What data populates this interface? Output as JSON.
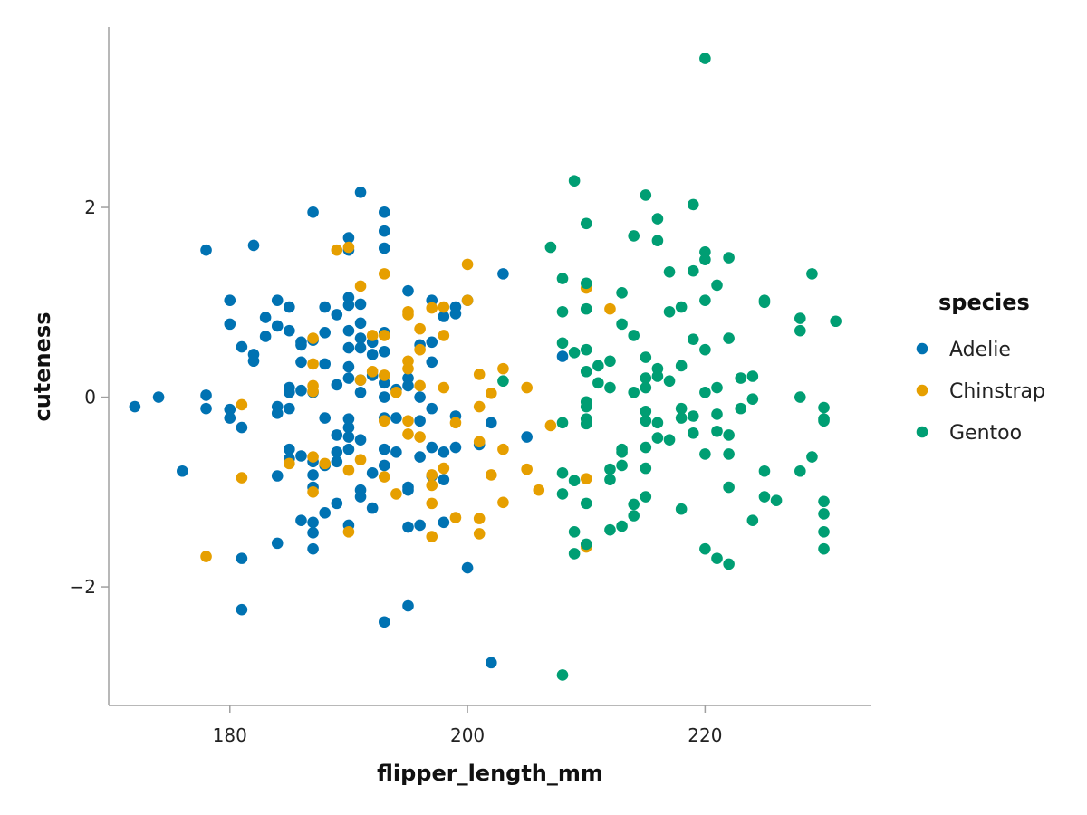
{
  "chart_data": {
    "type": "scatter",
    "xlabel": "flipper_length_mm",
    "ylabel": "cuteness",
    "xlim": [
      169.8,
      234.0
    ],
    "ylim": [
      -3.25,
      3.9
    ],
    "xticks": [
      180,
      200,
      220
    ],
    "yticks": [
      -2,
      0,
      2
    ],
    "xtick_labels": [
      "180",
      "200",
      "220"
    ],
    "ytick_labels": [
      "−2",
      "0",
      "2"
    ],
    "grid": false,
    "legend": {
      "title": "species",
      "placement": "right"
    },
    "series": [
      {
        "name": "Adelie",
        "color": "#0072B2",
        "points": [
          [
            172,
            -0.1
          ],
          [
            174,
            0.0
          ],
          [
            176,
            -0.78
          ],
          [
            178,
            1.55
          ],
          [
            178,
            0.02
          ],
          [
            178,
            -0.12
          ],
          [
            180,
            1.02
          ],
          [
            180,
            0.77
          ],
          [
            180,
            -0.13
          ],
          [
            180,
            -0.22
          ],
          [
            181,
            0.53
          ],
          [
            181,
            -0.32
          ],
          [
            181,
            -1.7
          ],
          [
            181,
            -2.24
          ],
          [
            182,
            1.6
          ],
          [
            182,
            0.45
          ],
          [
            182,
            0.38
          ],
          [
            183,
            0.84
          ],
          [
            183,
            0.64
          ],
          [
            184,
            1.02
          ],
          [
            184,
            0.75
          ],
          [
            184,
            -0.1
          ],
          [
            184,
            -0.17
          ],
          [
            184,
            -0.83
          ],
          [
            184,
            -1.54
          ],
          [
            185,
            0.95
          ],
          [
            185,
            0.7
          ],
          [
            185,
            0.1
          ],
          [
            185,
            0.05
          ],
          [
            185,
            -0.12
          ],
          [
            185,
            -0.55
          ],
          [
            185,
            -0.65
          ],
          [
            186,
            0.58
          ],
          [
            186,
            0.55
          ],
          [
            186,
            0.37
          ],
          [
            186,
            0.07
          ],
          [
            186,
            -0.62
          ],
          [
            186,
            -1.3
          ],
          [
            187,
            1.95
          ],
          [
            187,
            0.6
          ],
          [
            187,
            0.05
          ],
          [
            187,
            -0.68
          ],
          [
            187,
            -0.82
          ],
          [
            187,
            -0.95
          ],
          [
            187,
            -1.32
          ],
          [
            187,
            -1.43
          ],
          [
            187,
            -1.6
          ],
          [
            188,
            0.95
          ],
          [
            188,
            0.35
          ],
          [
            188,
            0.68
          ],
          [
            188,
            -0.22
          ],
          [
            188,
            -0.72
          ],
          [
            188,
            -1.22
          ],
          [
            189,
            0.87
          ],
          [
            189,
            0.13
          ],
          [
            189,
            -0.4
          ],
          [
            189,
            -0.58
          ],
          [
            189,
            -0.68
          ],
          [
            189,
            -1.12
          ],
          [
            190,
            1.68
          ],
          [
            190,
            1.55
          ],
          [
            190,
            1.05
          ],
          [
            190,
            0.97
          ],
          [
            190,
            0.7
          ],
          [
            190,
            0.52
          ],
          [
            190,
            0.32
          ],
          [
            190,
            0.2
          ],
          [
            190,
            -0.23
          ],
          [
            190,
            -0.32
          ],
          [
            190,
            -0.42
          ],
          [
            190,
            -0.55
          ],
          [
            190,
            -1.35
          ],
          [
            191,
            2.16
          ],
          [
            191,
            0.98
          ],
          [
            191,
            0.78
          ],
          [
            191,
            0.62
          ],
          [
            191,
            0.52
          ],
          [
            191,
            0.18
          ],
          [
            191,
            0.05
          ],
          [
            191,
            -0.45
          ],
          [
            191,
            -0.98
          ],
          [
            191,
            -1.05
          ],
          [
            192,
            0.58
          ],
          [
            192,
            0.45
          ],
          [
            192,
            0.23
          ],
          [
            192,
            -0.8
          ],
          [
            192,
            -1.17
          ],
          [
            193,
            1.95
          ],
          [
            193,
            1.75
          ],
          [
            193,
            1.57
          ],
          [
            193,
            0.68
          ],
          [
            193,
            0.48
          ],
          [
            193,
            0.15
          ],
          [
            193,
            0.0
          ],
          [
            193,
            -0.22
          ],
          [
            193,
            -0.55
          ],
          [
            193,
            -0.72
          ],
          [
            193,
            -2.37
          ],
          [
            194,
            0.08
          ],
          [
            194,
            -0.22
          ],
          [
            194,
            -0.58
          ],
          [
            195,
            1.12
          ],
          [
            195,
            0.2
          ],
          [
            195,
            0.12
          ],
          [
            195,
            -0.95
          ],
          [
            195,
            -0.98
          ],
          [
            195,
            -1.37
          ],
          [
            195,
            -2.2
          ],
          [
            196,
            0.55
          ],
          [
            196,
            0.0
          ],
          [
            196,
            -0.25
          ],
          [
            196,
            -0.63
          ],
          [
            196,
            -1.35
          ],
          [
            197,
            1.02
          ],
          [
            197,
            0.58
          ],
          [
            197,
            0.37
          ],
          [
            197,
            -0.12
          ],
          [
            197,
            -0.53
          ],
          [
            197,
            -0.83
          ],
          [
            198,
            0.85
          ],
          [
            198,
            -0.58
          ],
          [
            198,
            -0.87
          ],
          [
            198,
            -1.32
          ],
          [
            199,
            0.95
          ],
          [
            199,
            0.88
          ],
          [
            199,
            -0.2
          ],
          [
            199,
            -0.53
          ],
          [
            200,
            1.02
          ],
          [
            200,
            -1.8
          ],
          [
            201,
            -0.5
          ],
          [
            202,
            -0.27
          ],
          [
            202,
            -2.8
          ],
          [
            203,
            1.3
          ],
          [
            205,
            -0.42
          ],
          [
            208,
            0.43
          ]
        ]
      },
      {
        "name": "Chinstrap",
        "color": "#E69F00",
        "points": [
          [
            178,
            -1.68
          ],
          [
            181,
            -0.08
          ],
          [
            181,
            -0.85
          ],
          [
            185,
            -0.7
          ],
          [
            187,
            0.62
          ],
          [
            187,
            0.35
          ],
          [
            187,
            0.12
          ],
          [
            187,
            0.06
          ],
          [
            187,
            -0.63
          ],
          [
            187,
            -1.0
          ],
          [
            188,
            -0.7
          ],
          [
            189,
            1.55
          ],
          [
            190,
            1.58
          ],
          [
            190,
            -0.77
          ],
          [
            190,
            -1.42
          ],
          [
            191,
            1.17
          ],
          [
            191,
            0.18
          ],
          [
            191,
            -0.66
          ],
          [
            192,
            0.65
          ],
          [
            192,
            0.27
          ],
          [
            193,
            1.3
          ],
          [
            193,
            0.65
          ],
          [
            193,
            0.23
          ],
          [
            193,
            -0.25
          ],
          [
            193,
            -0.84
          ],
          [
            194,
            0.05
          ],
          [
            194,
            -1.02
          ],
          [
            195,
            0.9
          ],
          [
            195,
            0.87
          ],
          [
            195,
            0.38
          ],
          [
            195,
            0.3
          ],
          [
            195,
            -0.25
          ],
          [
            195,
            -0.39
          ],
          [
            196,
            0.72
          ],
          [
            196,
            0.5
          ],
          [
            196,
            0.12
          ],
          [
            196,
            -0.42
          ],
          [
            197,
            0.94
          ],
          [
            197,
            -0.82
          ],
          [
            197,
            -0.93
          ],
          [
            197,
            -1.12
          ],
          [
            197,
            -1.47
          ],
          [
            198,
            0.95
          ],
          [
            198,
            0.65
          ],
          [
            198,
            0.1
          ],
          [
            198,
            -0.75
          ],
          [
            199,
            -0.27
          ],
          [
            199,
            -1.27
          ],
          [
            200,
            1.4
          ],
          [
            200,
            1.02
          ],
          [
            201,
            0.24
          ],
          [
            201,
            -0.1
          ],
          [
            201,
            -0.47
          ],
          [
            201,
            -1.28
          ],
          [
            201,
            -1.44
          ],
          [
            202,
            0.04
          ],
          [
            202,
            -0.82
          ],
          [
            203,
            0.3
          ],
          [
            203,
            -0.55
          ],
          [
            203,
            -1.11
          ],
          [
            205,
            0.1
          ],
          [
            205,
            -0.76
          ],
          [
            206,
            -0.98
          ],
          [
            207,
            -0.3
          ],
          [
            210,
            1.15
          ],
          [
            210,
            -0.86
          ],
          [
            210,
            -1.58
          ],
          [
            212,
            0.93
          ]
        ]
      },
      {
        "name": "Gentoo",
        "color": "#009E73",
        "points": [
          [
            203,
            0.17
          ],
          [
            207,
            1.58
          ],
          [
            208,
            1.25
          ],
          [
            208,
            0.9
          ],
          [
            208,
            0.57
          ],
          [
            208,
            -0.27
          ],
          [
            208,
            -0.8
          ],
          [
            208,
            -1.02
          ],
          [
            208,
            -2.93
          ],
          [
            209,
            2.28
          ],
          [
            209,
            0.47
          ],
          [
            209,
            -0.88
          ],
          [
            209,
            -1.42
          ],
          [
            209,
            -1.65
          ],
          [
            210,
            1.83
          ],
          [
            210,
            1.2
          ],
          [
            210,
            0.93
          ],
          [
            210,
            0.5
          ],
          [
            210,
            0.27
          ],
          [
            210,
            -0.05
          ],
          [
            210,
            -0.1
          ],
          [
            210,
            -0.23
          ],
          [
            210,
            -0.28
          ],
          [
            210,
            -1.12
          ],
          [
            210,
            -1.55
          ],
          [
            211,
            0.33
          ],
          [
            211,
            0.15
          ],
          [
            212,
            0.38
          ],
          [
            212,
            0.1
          ],
          [
            212,
            -0.76
          ],
          [
            212,
            -0.87
          ],
          [
            212,
            -1.4
          ],
          [
            213,
            1.1
          ],
          [
            213,
            0.77
          ],
          [
            213,
            -0.55
          ],
          [
            213,
            -0.58
          ],
          [
            213,
            -0.72
          ],
          [
            213,
            -1.36
          ],
          [
            214,
            1.7
          ],
          [
            214,
            0.65
          ],
          [
            214,
            0.05
          ],
          [
            214,
            -1.13
          ],
          [
            214,
            -1.25
          ],
          [
            215,
            2.13
          ],
          [
            215,
            0.42
          ],
          [
            215,
            0.2
          ],
          [
            215,
            0.1
          ],
          [
            215,
            -0.15
          ],
          [
            215,
            -0.25
          ],
          [
            215,
            -0.53
          ],
          [
            215,
            -0.75
          ],
          [
            215,
            -1.05
          ],
          [
            216,
            1.88
          ],
          [
            216,
            1.65
          ],
          [
            216,
            0.3
          ],
          [
            216,
            0.22
          ],
          [
            216,
            -0.27
          ],
          [
            216,
            -0.43
          ],
          [
            217,
            1.32
          ],
          [
            217,
            0.9
          ],
          [
            217,
            0.17
          ],
          [
            217,
            -0.45
          ],
          [
            218,
            0.95
          ],
          [
            218,
            0.33
          ],
          [
            218,
            -0.12
          ],
          [
            218,
            -0.22
          ],
          [
            218,
            -1.18
          ],
          [
            219,
            2.03
          ],
          [
            219,
            1.33
          ],
          [
            219,
            0.61
          ],
          [
            219,
            -0.2
          ],
          [
            219,
            -0.38
          ],
          [
            220,
            3.57
          ],
          [
            220,
            1.53
          ],
          [
            220,
            1.45
          ],
          [
            220,
            1.02
          ],
          [
            220,
            0.5
          ],
          [
            220,
            0.05
          ],
          [
            220,
            -0.6
          ],
          [
            220,
            -1.6
          ],
          [
            221,
            1.18
          ],
          [
            221,
            0.1
          ],
          [
            221,
            -0.18
          ],
          [
            221,
            -0.36
          ],
          [
            221,
            -1.7
          ],
          [
            222,
            1.47
          ],
          [
            222,
            0.62
          ],
          [
            222,
            -0.4
          ],
          [
            222,
            -0.6
          ],
          [
            222,
            -0.95
          ],
          [
            222,
            -1.76
          ],
          [
            223,
            0.2
          ],
          [
            223,
            -0.12
          ],
          [
            224,
            0.22
          ],
          [
            224,
            -0.02
          ],
          [
            224,
            -1.3
          ],
          [
            225,
            1.02
          ],
          [
            225,
            1.0
          ],
          [
            225,
            -0.78
          ],
          [
            225,
            -1.05
          ],
          [
            226,
            -1.09
          ],
          [
            228,
            0.83
          ],
          [
            228,
            0.7
          ],
          [
            228,
            0.0
          ],
          [
            228,
            -0.78
          ],
          [
            229,
            1.3
          ],
          [
            229,
            -0.63
          ],
          [
            230,
            -0.11
          ],
          [
            230,
            -0.23
          ],
          [
            230,
            -0.25
          ],
          [
            230,
            -1.1
          ],
          [
            230,
            -1.23
          ],
          [
            230,
            -1.42
          ],
          [
            230,
            -1.6
          ],
          [
            231,
            0.8
          ]
        ]
      }
    ]
  }
}
